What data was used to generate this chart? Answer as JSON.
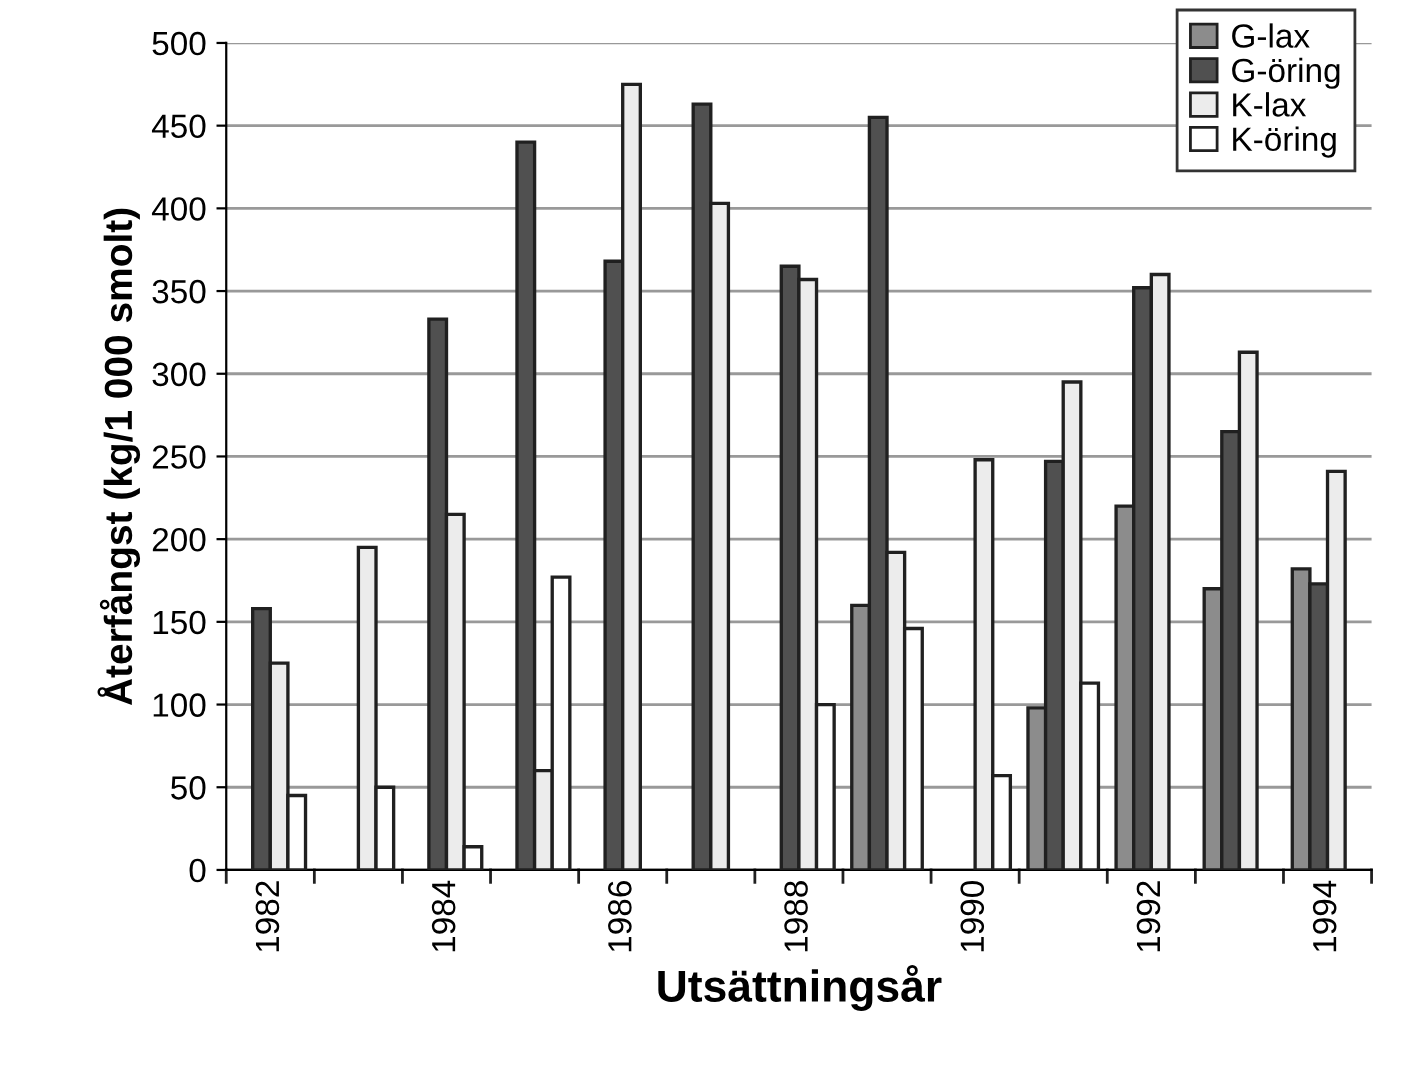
{
  "chart_data": {
    "type": "bar",
    "xlabel": "Utsättningsår",
    "ylabel": "Återfångst (kg/1 000 smolt)",
    "categories": [
      "1982",
      null,
      "1984",
      null,
      "1986",
      null,
      "1988",
      null,
      "1990",
      null,
      "1992",
      null,
      "1994"
    ],
    "series": [
      {
        "name": "G-lax",
        "color": "#8c8c8c",
        "values": [
          null,
          null,
          null,
          null,
          null,
          null,
          null,
          160,
          null,
          98,
          220,
          170,
          182
        ]
      },
      {
        "name": "G-öring",
        "color": "#505050",
        "values": [
          158,
          null,
          333,
          440,
          368,
          463,
          365,
          455,
          null,
          247,
          352,
          265,
          173
        ]
      },
      {
        "name": "K-lax",
        "color": "#ececec",
        "values": [
          125,
          195,
          215,
          60,
          475,
          403,
          357,
          192,
          248,
          295,
          360,
          313,
          241
        ]
      },
      {
        "name": "K-öring",
        "color": "#ffffff",
        "values": [
          45,
          50,
          14,
          177,
          null,
          null,
          100,
          146,
          57,
          113,
          null,
          null,
          null
        ]
      }
    ],
    "ylim": [
      0,
      500
    ],
    "yticks": [
      0,
      50,
      100,
      150,
      200,
      250,
      300,
      350,
      400,
      450,
      500
    ],
    "grid": "y",
    "legend": "top right"
  }
}
